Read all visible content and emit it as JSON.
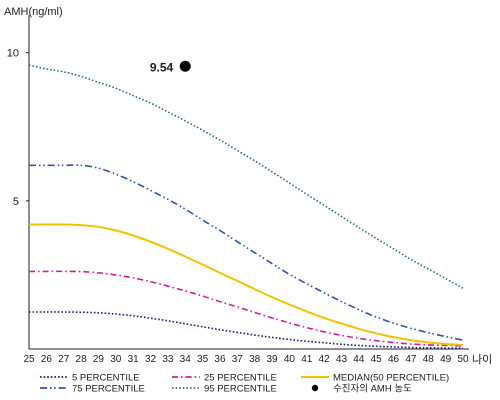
{
  "chart_data": {
    "type": "line",
    "title": "",
    "ylabel": "AMH(ng/ml)",
    "xlabel": "나이",
    "xlim": [
      25,
      50
    ],
    "ylim": [
      0,
      11
    ],
    "grid": false,
    "legend_position": "bottom",
    "x": [
      25,
      26,
      27,
      28,
      29,
      30,
      31,
      32,
      33,
      34,
      35,
      36,
      37,
      38,
      39,
      40,
      41,
      42,
      43,
      44,
      45,
      46,
      47,
      48,
      49,
      50
    ],
    "x_ticks": [
      "25",
      "26",
      "27",
      "28",
      "29",
      "30",
      "31",
      "32",
      "33",
      "34",
      "35",
      "36",
      "37",
      "38",
      "39",
      "40",
      "41",
      "42",
      "43",
      "44",
      "45",
      "46",
      "47",
      "48",
      "49",
      "50"
    ],
    "y_ticks": [
      {
        "value": 5,
        "label": "5"
      },
      {
        "value": 10,
        "label": "10"
      }
    ],
    "series": [
      {
        "name": "5 PERCENTILE",
        "color": "#1a1a8a",
        "dash": "dotted",
        "values": [
          1.25,
          1.25,
          1.25,
          1.24,
          1.22,
          1.18,
          1.12,
          1.04,
          0.95,
          0.85,
          0.75,
          0.65,
          0.56,
          0.47,
          0.39,
          0.32,
          0.26,
          0.21,
          0.16,
          0.12,
          0.09,
          0.07,
          0.05,
          0.04,
          0.03,
          0.03
        ]
      },
      {
        "name": "25 PERCENTILE",
        "color": "#e0199a",
        "dash": "dashdot",
        "values": [
          2.62,
          2.62,
          2.62,
          2.61,
          2.57,
          2.5,
          2.4,
          2.27,
          2.12,
          1.96,
          1.79,
          1.6,
          1.42,
          1.23,
          1.05,
          0.88,
          0.72,
          0.58,
          0.46,
          0.36,
          0.28,
          0.22,
          0.17,
          0.14,
          0.12,
          0.1
        ]
      },
      {
        "name": "75 PERCENTILE",
        "color": "#3050c8",
        "dash": "dashdotdot",
        "values": [
          6.2,
          6.2,
          6.2,
          6.2,
          6.1,
          5.9,
          5.65,
          5.35,
          5.05,
          4.72,
          4.35,
          4.0,
          3.62,
          3.25,
          2.88,
          2.52,
          2.2,
          1.9,
          1.6,
          1.33,
          1.08,
          0.87,
          0.7,
          0.55,
          0.42,
          0.3
        ]
      },
      {
        "name": "95 PERCENTILE",
        "color": "#2e7d4f",
        "dash": "dotted",
        "values": [
          9.58,
          9.45,
          9.35,
          9.2,
          9.0,
          8.8,
          8.55,
          8.3,
          8.0,
          7.7,
          7.38,
          7.05,
          6.7,
          6.35,
          5.98,
          5.6,
          5.22,
          4.85,
          4.47,
          4.1,
          3.73,
          3.38,
          3.02,
          2.7,
          2.38,
          2.05
        ]
      },
      {
        "name": "MEDIAN(50 PERCENTILE)",
        "color": "#f2c200",
        "dash": "solid",
        "values": [
          4.2,
          4.2,
          4.2,
          4.18,
          4.12,
          4.0,
          3.83,
          3.62,
          3.38,
          3.12,
          2.85,
          2.57,
          2.3,
          2.02,
          1.75,
          1.5,
          1.27,
          1.05,
          0.86,
          0.68,
          0.53,
          0.4,
          0.3,
          0.22,
          0.17,
          0.14
        ]
      }
    ],
    "marker": {
      "name": "수진자의 AMH 농도",
      "x": 34,
      "y": 9.54,
      "label": "9.54",
      "color": "#000000"
    }
  }
}
